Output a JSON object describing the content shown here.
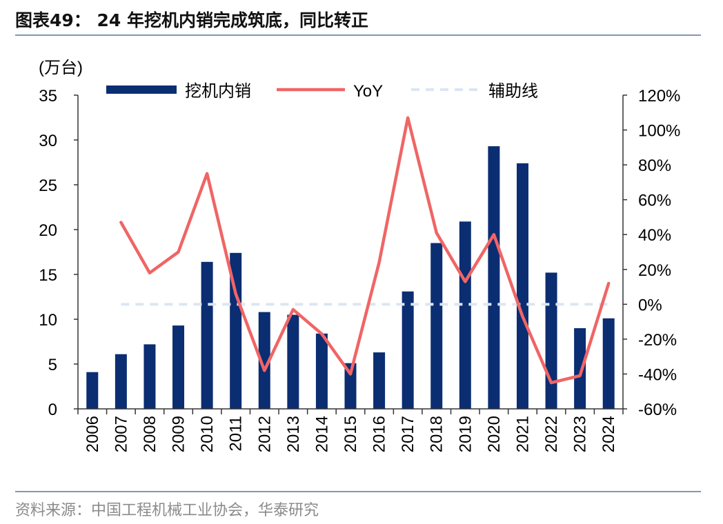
{
  "header": {
    "title": "图表49： 24 年挖机内销完成筑底，同比转正"
  },
  "footer": {
    "source": "资料来源：中国工程机械工业协会，华泰研究"
  },
  "chart_data": {
    "type": "bar",
    "categories": [
      "2006",
      "2007",
      "2008",
      "2009",
      "2010",
      "2011",
      "2012",
      "2013",
      "2014",
      "2015",
      "2016",
      "2017",
      "2018",
      "2019",
      "2020",
      "2021",
      "2022",
      "2023",
      "2024"
    ],
    "series": [
      {
        "name": "挖机内销",
        "type": "bar",
        "axis": "left",
        "values": [
          4.1,
          6.1,
          7.2,
          9.3,
          16.4,
          17.4,
          10.8,
          10.5,
          8.4,
          5.1,
          6.3,
          13.1,
          18.5,
          20.9,
          29.3,
          27.4,
          15.2,
          9.0,
          10.1
        ]
      },
      {
        "name": "YoY",
        "type": "line",
        "axis": "right",
        "values": [
          null,
          0.47,
          0.18,
          0.3,
          0.75,
          0.06,
          -0.38,
          -0.03,
          -0.17,
          -0.4,
          0.24,
          1.07,
          0.41,
          0.13,
          0.4,
          -0.07,
          -0.45,
          -0.41,
          0.12
        ]
      },
      {
        "name": "辅助线",
        "type": "dashed-line",
        "axis": "right",
        "values": [
          null,
          0,
          0,
          0,
          0,
          0,
          0,
          0,
          0,
          0,
          0,
          0,
          0,
          0,
          0,
          0,
          0,
          0,
          0
        ]
      }
    ],
    "ylabel": "(万台)",
    "ylim": [
      0,
      35
    ],
    "yticks": [
      "0",
      "5",
      "10",
      "15",
      "20",
      "25",
      "30",
      "35"
    ],
    "y2lim": [
      -0.6,
      1.2
    ],
    "y2ticks": [
      "-60%",
      "-40%",
      "-20%",
      "0%",
      "20%",
      "40%",
      "60%",
      "80%",
      "100%",
      "120%"
    ],
    "legend_position": "top",
    "grid": false,
    "colors": {
      "bar": "#0b2d72",
      "line": "#f06565",
      "aux": "#dce6f2",
      "axis": "#333333"
    }
  }
}
